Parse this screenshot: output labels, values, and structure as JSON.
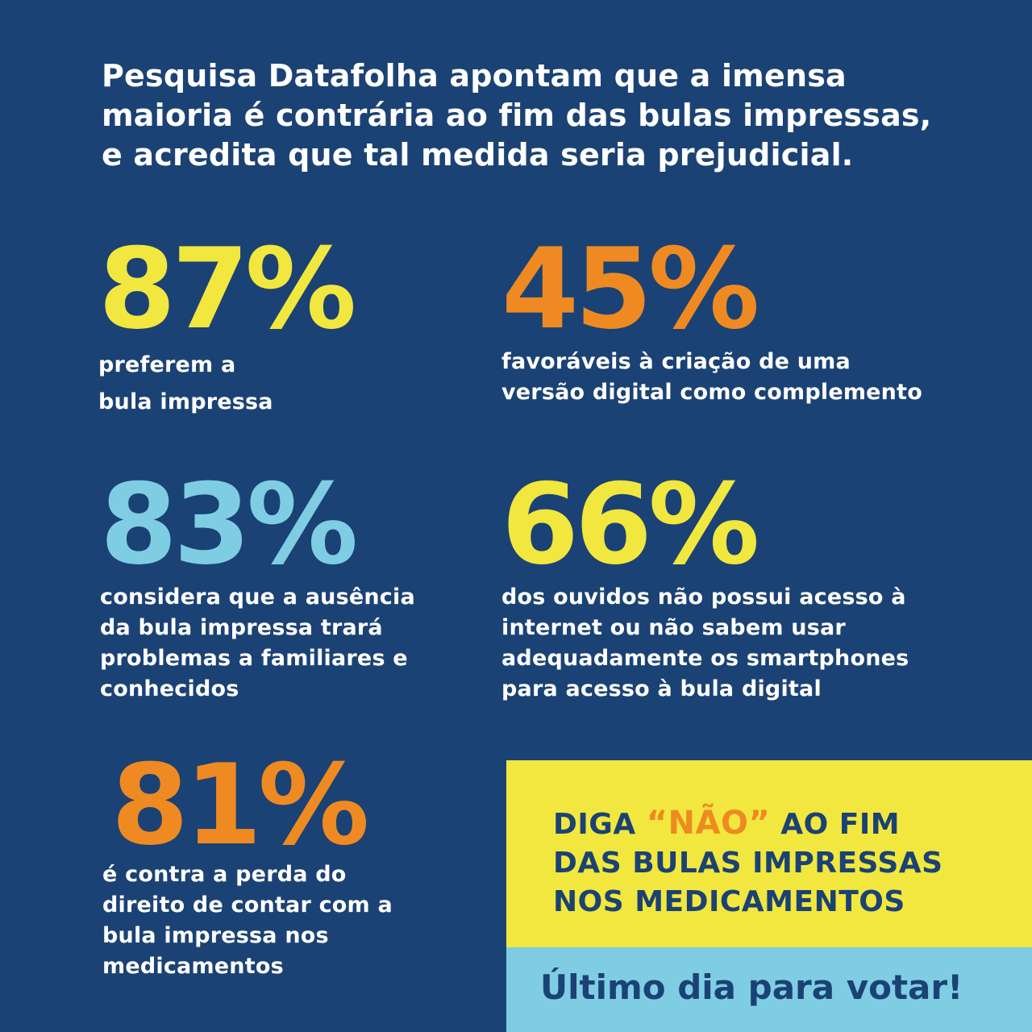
{
  "headline": {
    "lines": [
      "Pesquisa Datafolha apontam que a imensa",
      "maioria é contrária ao fim das bulas impressas,",
      "e acredita que tal medida seria prejudicial."
    ]
  },
  "stats": [
    {
      "value": "87%",
      "color": "#f1e73e",
      "lines": [
        "preferem a",
        "bula impressa"
      ]
    },
    {
      "value": "45%",
      "color": "#ef8a22",
      "lines": [
        "favoráveis à criação de uma",
        "versão digital como complemento"
      ]
    },
    {
      "value": "83%",
      "color": "#7fcde3",
      "lines": [
        "considera que a ausência",
        "da bula impressa trará",
        "problemas a familiares e",
        "conhecidos"
      ]
    },
    {
      "value": "66%",
      "color": "#f1e73e",
      "lines": [
        "dos ouvidos não possui acesso à",
        "internet ou não sabem usar",
        "adequadamente os smartphones",
        "para acesso à bula digital"
      ]
    },
    {
      "value": "81%",
      "color": "#ef8a22",
      "lines": [
        "é contra a perda do",
        "direito de contar com a",
        "bula impressa nos",
        "medicamentos"
      ]
    }
  ],
  "cta": {
    "line1_before": "DIGA ",
    "line1_highlight": "“NÃO”",
    "line1_after": " AO FIM",
    "line2": "DAS BULAS IMPRESSAS",
    "line3": "NOS MEDICAMENTOS",
    "vote": "Último dia para votar!"
  },
  "colors": {
    "background": "#1b4274",
    "yellow": "#f1e73e",
    "orange": "#ef8a22",
    "light_blue": "#7fcde3"
  }
}
